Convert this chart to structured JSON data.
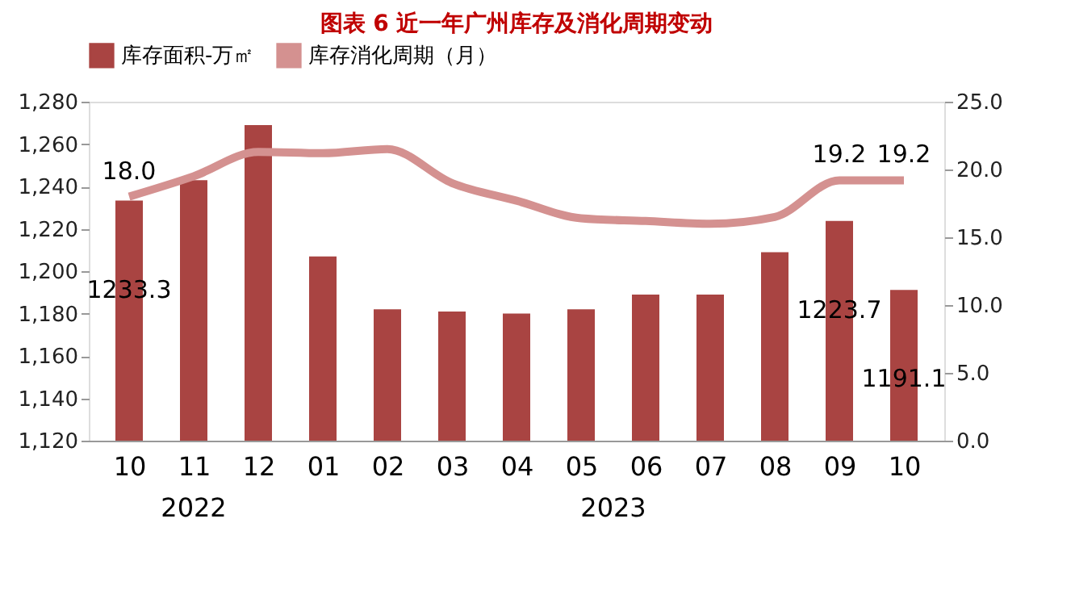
{
  "chart_data": {
    "type": "bar",
    "title": "图表 6  近一年广州库存及消化周期变动",
    "categories": [
      "10",
      "11",
      "12",
      "01",
      "02",
      "03",
      "04",
      "05",
      "06",
      "07",
      "08",
      "09",
      "10"
    ],
    "series": [
      {
        "name": "库存面积-万㎡",
        "color": "#a94442",
        "values": [
          1233.3,
          1243,
          1269,
          1207,
          1182,
          1181,
          1180,
          1182,
          1189,
          1189,
          1209,
          1223.7,
          1191.1
        ],
        "value_labels": [
          "1233.3",
          null,
          null,
          null,
          null,
          null,
          null,
          null,
          null,
          null,
          null,
          "1223.7",
          "1191.1"
        ]
      },
      {
        "name": "库存消化周期（月）",
        "type": "line",
        "axis": "y2",
        "color": "#d49190",
        "values": [
          18.0,
          19.5,
          21.3,
          21.2,
          21.5,
          19.0,
          17.7,
          16.4,
          16.2,
          16.0,
          16.5,
          19.2,
          19.2
        ],
        "value_labels": [
          "18.0",
          null,
          null,
          null,
          null,
          null,
          null,
          null,
          null,
          null,
          null,
          "19.2",
          "19.2"
        ]
      }
    ],
    "ylim": [
      1120,
      1280
    ],
    "yticks": [
      {
        "value": 1120,
        "label": "1,120"
      },
      {
        "value": 1140,
        "label": "1,140"
      },
      {
        "value": 1160,
        "label": "1,160"
      },
      {
        "value": 1180,
        "label": "1,180"
      },
      {
        "value": 1200,
        "label": "1,200"
      },
      {
        "value": 1220,
        "label": "1,220"
      },
      {
        "value": 1240,
        "label": "1,240"
      },
      {
        "value": 1260,
        "label": "1,260"
      },
      {
        "value": 1280,
        "label": "1,280"
      }
    ],
    "y2lim": [
      0,
      25
    ],
    "y2ticks": [
      {
        "value": 0,
        "label": "0.0"
      },
      {
        "value": 5,
        "label": "5.0"
      },
      {
        "value": 10,
        "label": "10.0"
      },
      {
        "value": 15,
        "label": "15.0"
      },
      {
        "value": 20,
        "label": "20.0"
      },
      {
        "value": 25,
        "label": "25.0"
      }
    ],
    "annotations": [
      "2022",
      "2023"
    ],
    "legend": "top",
    "grid": false
  }
}
